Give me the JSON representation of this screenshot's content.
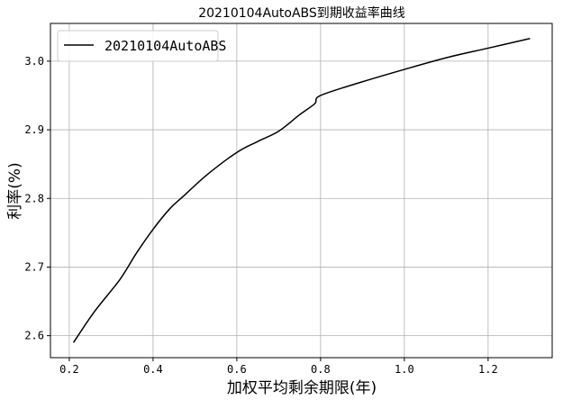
{
  "chart_data": {
    "type": "line",
    "title": "20210104AutoABS到期收益率曲线",
    "xlabel": "加权平均剩余期限(年)",
    "ylabel": "利率(%)",
    "xlim": [
      0.155,
      1.353
    ],
    "ylim": [
      2.568,
      3.055
    ],
    "xticks": [
      0.2,
      0.4,
      0.6,
      0.8,
      1.0,
      1.2
    ],
    "xtick_labels": [
      "0.2",
      "0.4",
      "0.6",
      "0.8",
      "1.0",
      "1.2"
    ],
    "yticks": [
      2.6,
      2.7,
      2.8,
      2.9,
      3.0
    ],
    "ytick_labels": [
      "2.6",
      "2.7",
      "2.8",
      "2.9",
      "3.0"
    ],
    "grid": true,
    "legend_placement": "upper-left",
    "series": [
      {
        "name": "20210104AutoABS",
        "color": "#000000",
        "x": [
          0.21,
          0.26,
          0.321,
          0.36,
          0.4,
          0.44,
          0.472,
          0.53,
          0.6,
          0.65,
          0.7,
          0.75,
          0.786,
          0.8,
          0.9,
          1.0,
          1.1,
          1.2,
          1.3
        ],
        "y": [
          2.59,
          2.635,
          2.682,
          2.72,
          2.755,
          2.785,
          2.803,
          2.835,
          2.867,
          2.883,
          2.898,
          2.922,
          2.938,
          2.95,
          2.97,
          2.988,
          3.005,
          3.019,
          3.033
        ]
      }
    ]
  }
}
